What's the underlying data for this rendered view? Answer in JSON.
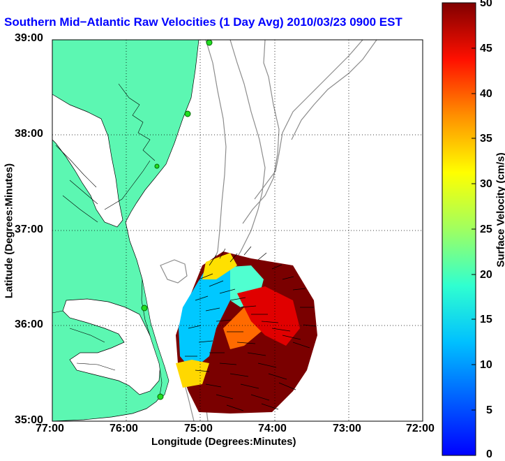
{
  "title": "Southern Mid−Atlantic Raw Velocities (1 Day Avg) 2010/03/23 0900 EST",
  "x_axis_label": "Longitude (Degrees:Minutes)",
  "y_axis_label": "Latitude (Degrees:Minutes)",
  "x_ticks": [
    "77:00",
    "76:00",
    "75:00",
    "74:00",
    "73:00",
    "72:00"
  ],
  "y_ticks": [
    "39:00",
    "38:00",
    "37:00",
    "36:00",
    "35:00"
  ],
  "colorbar": {
    "label": "Surface Velocity (cm/s)",
    "ticks": [
      "50",
      "45",
      "40",
      "35",
      "30",
      "25",
      "20",
      "15",
      "10",
      "5",
      "0"
    ],
    "range": [
      0,
      50
    ],
    "colormap": "jet"
  },
  "colors": {
    "land": "#5cf7b2",
    "title": "#0000ff",
    "bathymetry": "#8c8c8c",
    "station": "#22dd22"
  },
  "map": {
    "lon_range": [
      -77,
      -72
    ],
    "lat_range": [
      35,
      39
    ],
    "grid": "dotted"
  }
}
